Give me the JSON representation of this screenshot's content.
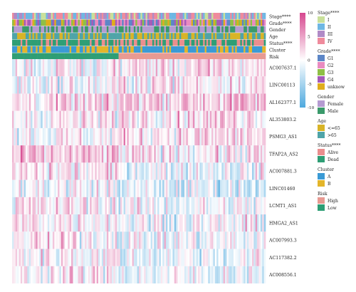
{
  "chart_data": {
    "type": "heatmap",
    "title": "",
    "annotation_tracks": [
      {
        "name": "Stage****",
        "legend_title": "Stage****",
        "levels": [
          "I",
          "II",
          "III",
          "IV"
        ],
        "colors": [
          "#c9e09a",
          "#6fb7e3",
          "#b08ac6",
          "#ef8b9c"
        ]
      },
      {
        "name": "Grade****",
        "legend_title": "Grade****",
        "levels": [
          "G1",
          "G2",
          "G3",
          "G4",
          "unknow"
        ],
        "colors": [
          "#5c86c7",
          "#e98bc0",
          "#8fbf45",
          "#a55ab8",
          "#e0ad1c"
        ]
      },
      {
        "name": "Gender",
        "legend_title": "Gender",
        "levels": [
          "Female",
          "Male"
        ],
        "colors": [
          "#b59bd1",
          "#3a9a6b"
        ]
      },
      {
        "name": "Age",
        "legend_title": "Age",
        "levels": [
          "<=65",
          ">65"
        ],
        "colors": [
          "#d8b427",
          "#4fa4a8"
        ]
      },
      {
        "name": "Status****",
        "legend_title": "Status****",
        "levels": [
          "Alive",
          "Dead"
        ],
        "colors": [
          "#ea8e8e",
          "#2e9e75"
        ]
      },
      {
        "name": "Cluster",
        "legend_title": "Cluster",
        "levels": [
          "A",
          "B"
        ],
        "colors": [
          "#3a9ad5",
          "#e3b52a"
        ]
      },
      {
        "name": "Risk",
        "legend_title": "Risk",
        "levels": [
          "High",
          "Low"
        ],
        "colors": [
          "#e89a92",
          "#2e9e75"
        ]
      }
    ],
    "genes": [
      "AC007637.1",
      "LINC00113",
      "AL162377.1",
      "AL353803.2",
      "PSMG3_AS1",
      "TFAP2A_AS2",
      "AC007881.3",
      "LINC01460",
      "LCMT1_AS1",
      "HMGA2_AS1",
      "AC007993.3",
      "AC117382.2",
      "AC008556.1"
    ],
    "gene_mean_z": [
      0.3,
      0.2,
      0.9,
      0.6,
      0.4,
      0.7,
      0.1,
      -0.4,
      0.1,
      0.2,
      0.1,
      0.0,
      0.0
    ],
    "samples_approx": 150,
    "risk_low_fraction": 0.42,
    "colorbar": {
      "min": -10,
      "max": 10,
      "ticks": [
        10,
        5,
        0,
        -5,
        -10
      ],
      "low_color": "#4ea9de",
      "mid_color": "#ffffff",
      "high_color": "#d6488f"
    },
    "grid": false
  }
}
